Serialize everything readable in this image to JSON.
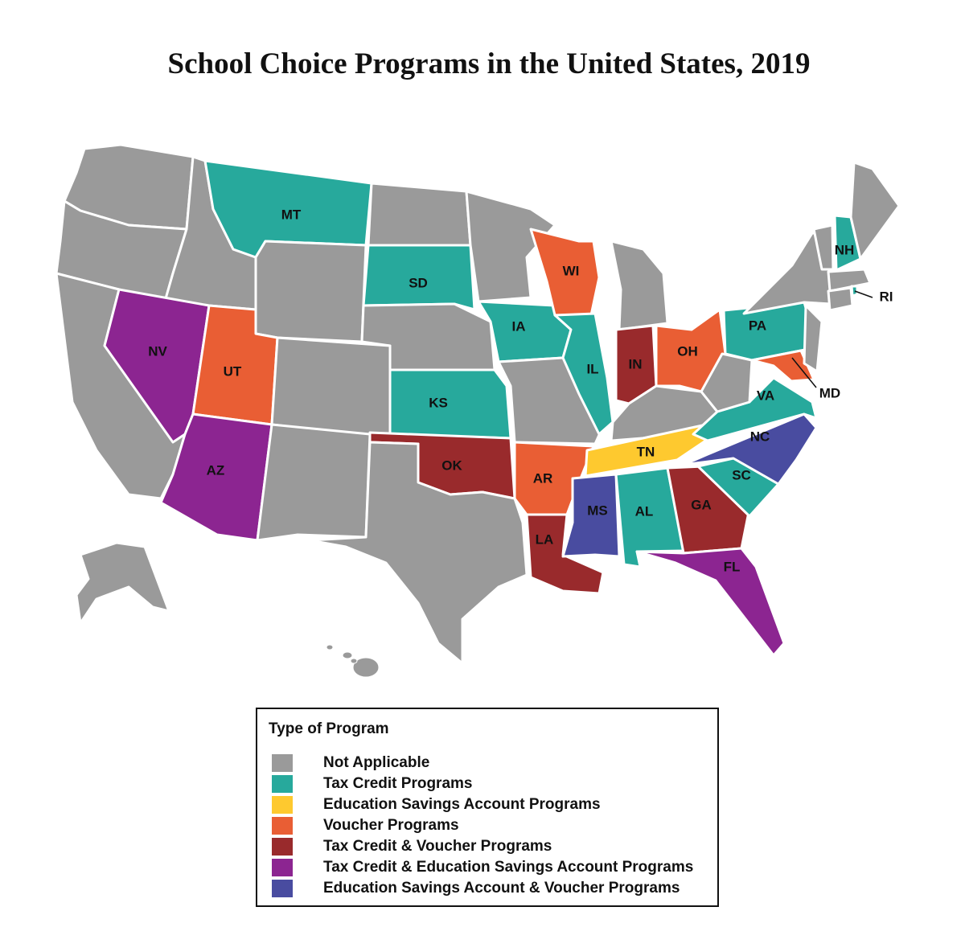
{
  "title": "School Choice Programs in the United States, 2019",
  "legend": {
    "title": "Type of Program",
    "items": [
      {
        "key": "na",
        "label": "Not Applicable",
        "color": "#9a9a9a"
      },
      {
        "key": "tc",
        "label": "Tax Credit Programs",
        "color": "#27a99c"
      },
      {
        "key": "esa",
        "label": "Education Savings Account Programs",
        "color": "#fec92f"
      },
      {
        "key": "v",
        "label": "Voucher Programs",
        "color": "#e95e34"
      },
      {
        "key": "tcv",
        "label": "Tax Credit & Voucher Programs",
        "color": "#992a2c"
      },
      {
        "key": "tcesa",
        "label": "Tax Credit & Education Savings Account Programs",
        "color": "#8c2591"
      },
      {
        "key": "esav",
        "label": "Education Savings Account & Voucher Programs",
        "color": "#494ca0"
      }
    ]
  },
  "states": {
    "MT": {
      "label": "MT",
      "program": "tc"
    },
    "SD": {
      "label": "SD",
      "program": "tc"
    },
    "KS": {
      "label": "KS",
      "program": "tc"
    },
    "IA": {
      "label": "IA",
      "program": "tc"
    },
    "IL": {
      "label": "IL",
      "program": "tc"
    },
    "PA": {
      "label": "PA",
      "program": "tc"
    },
    "VA": {
      "label": "VA",
      "program": "tc"
    },
    "SC": {
      "label": "SC",
      "program": "tc"
    },
    "AL": {
      "label": "AL",
      "program": "tc"
    },
    "NH": {
      "label": "NH",
      "program": "tc"
    },
    "RI": {
      "label": "RI",
      "program": "tc"
    },
    "TN": {
      "label": "TN",
      "program": "esa"
    },
    "UT": {
      "label": "UT",
      "program": "v"
    },
    "WI": {
      "label": "WI",
      "program": "v"
    },
    "OH": {
      "label": "OH",
      "program": "v"
    },
    "AR": {
      "label": "AR",
      "program": "v"
    },
    "MD": {
      "label": "MD",
      "program": "v"
    },
    "IN": {
      "label": "IN",
      "program": "tcv"
    },
    "OK": {
      "label": "OK",
      "program": "tcv"
    },
    "LA": {
      "label": "LA",
      "program": "tcv"
    },
    "GA": {
      "label": "GA",
      "program": "tcv"
    },
    "NV": {
      "label": "NV",
      "program": "tcesa"
    },
    "AZ": {
      "label": "AZ",
      "program": "tcesa"
    },
    "FL": {
      "label": "FL",
      "program": "tcesa"
    },
    "MS": {
      "label": "MS",
      "program": "esav"
    },
    "NC": {
      "label": "NC",
      "program": "esav"
    }
  }
}
